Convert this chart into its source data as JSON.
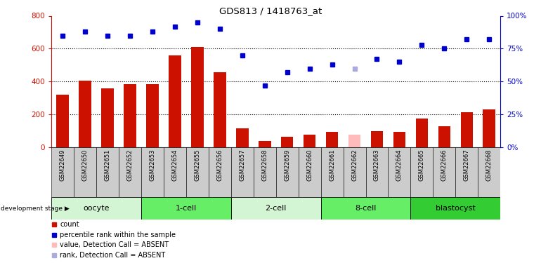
{
  "title": "GDS813 / 1418763_at",
  "samples": [
    "GSM22649",
    "GSM22650",
    "GSM22651",
    "GSM22652",
    "GSM22653",
    "GSM22654",
    "GSM22655",
    "GSM22656",
    "GSM22657",
    "GSM22658",
    "GSM22659",
    "GSM22660",
    "GSM22661",
    "GSM22662",
    "GSM22663",
    "GSM22664",
    "GSM22665",
    "GSM22666",
    "GSM22667",
    "GSM22668"
  ],
  "count_values": [
    320,
    405,
    360,
    385,
    385,
    560,
    610,
    455,
    115,
    40,
    65,
    75,
    95,
    75,
    100,
    95,
    175,
    130,
    215,
    230
  ],
  "count_absent": [
    false,
    false,
    false,
    false,
    false,
    false,
    false,
    false,
    false,
    false,
    false,
    false,
    false,
    true,
    false,
    false,
    false,
    false,
    false,
    false
  ],
  "rank_values": [
    85,
    88,
    85,
    85,
    88,
    92,
    95,
    90,
    70,
    47,
    57,
    60,
    63,
    60,
    67,
    65,
    78,
    75,
    82,
    82
  ],
  "rank_absent": [
    false,
    false,
    false,
    false,
    false,
    false,
    false,
    false,
    false,
    false,
    false,
    false,
    false,
    true,
    false,
    false,
    false,
    false,
    false,
    false
  ],
  "stages": [
    {
      "label": "oocyte",
      "start": 0,
      "end": 4,
      "color": "#d4f5d4"
    },
    {
      "label": "1-cell",
      "start": 4,
      "end": 8,
      "color": "#66ee66"
    },
    {
      "label": "2-cell",
      "start": 8,
      "end": 12,
      "color": "#d4f5d4"
    },
    {
      "label": "8-cell",
      "start": 12,
      "end": 16,
      "color": "#66ee66"
    },
    {
      "label": "blastocyst",
      "start": 16,
      "end": 20,
      "color": "#33cc33"
    }
  ],
  "ylim_left": [
    0,
    800
  ],
  "ylim_right": [
    0,
    100
  ],
  "yticks_left": [
    0,
    200,
    400,
    600,
    800
  ],
  "yticks_right": [
    0,
    25,
    50,
    75,
    100
  ],
  "bar_color": "#cc1100",
  "dot_color": "#0000cc",
  "absent_bar_color": "#ffbbbb",
  "absent_dot_color": "#aaaadd",
  "xtick_bg_color": "#cccccc",
  "gridline_color": "black",
  "right_axis_color": "#0000cc"
}
